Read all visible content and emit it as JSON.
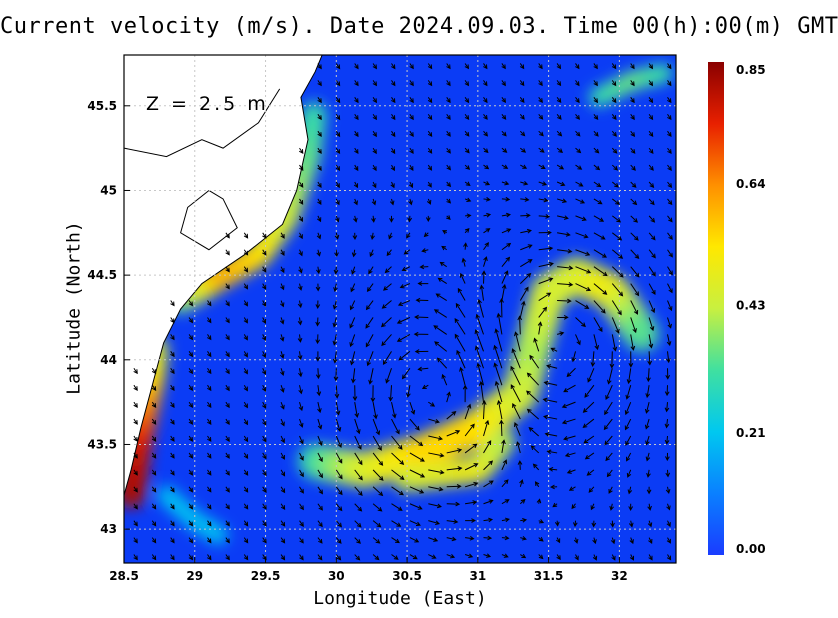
{
  "title": "Current velocity (m/s). Date 2024.09.03. Time 00(h):00(m) GMT",
  "depth_label": "Z = 2.5 m",
  "xlabel": "Longitude (East)",
  "ylabel": "Latitude (North)",
  "colorbar": {
    "ticks": [
      "0.85",
      "0.64",
      "0.43",
      "0.21",
      "0.00"
    ],
    "min": 0.0,
    "max": 0.85,
    "colors": [
      "#1a3cff",
      "#0a80ff",
      "#00c8f0",
      "#40e0a0",
      "#c8f040",
      "#ffe800",
      "#ff9000",
      "#e82000",
      "#8a0000"
    ]
  },
  "colors": {
    "sea_background": "#0b3cf5",
    "land": "#ffffff",
    "coastline": "#000000",
    "grid": "#c8c8c8",
    "arrows": "#000000"
  },
  "chart_data": {
    "type": "heatmap",
    "title": "Current velocity (m/s). Date 2024.09.03. Time 00(h):00(m) GMT",
    "xlabel": "Longitude (East)",
    "ylabel": "Latitude (North)",
    "xlim": [
      28.5,
      32.4
    ],
    "ylim": [
      42.8,
      45.8
    ],
    "x_ticks": [
      "28.5",
      "29",
      "29.5",
      "30",
      "30.5",
      "31",
      "31.5",
      "32"
    ],
    "y_ticks": [
      "43",
      "43.5",
      "44",
      "44.5",
      "45",
      "45.5"
    ],
    "units": "m/s",
    "value_range": [
      0.0,
      0.85
    ],
    "grid": true,
    "legend": "colorbar-right",
    "depth": "Z = 2.5 m"
  }
}
